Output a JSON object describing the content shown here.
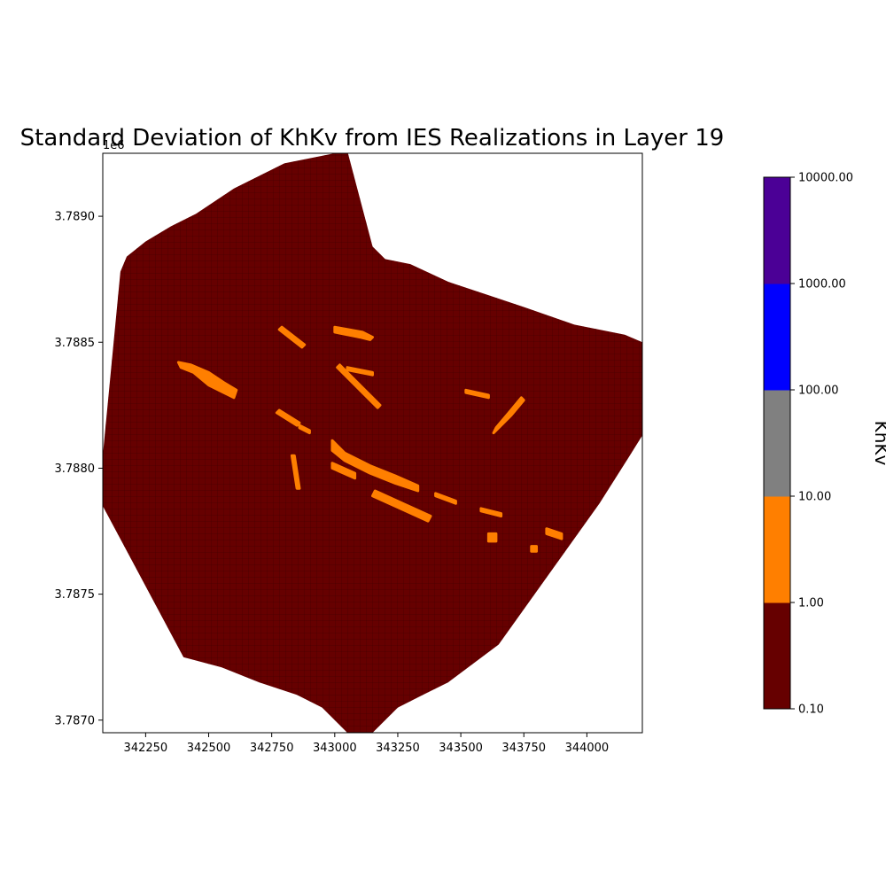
{
  "chart_data": {
    "type": "heatmap",
    "title": "Standard Deviation of KhKv from IES Realizations in Layer 19",
    "xlim": [
      342080,
      344220
    ],
    "ylim": [
      3786950,
      3789250
    ],
    "y_offset_text": "1e6",
    "x_ticks": [
      342250,
      342500,
      342750,
      343000,
      343250,
      343500,
      343750,
      344000
    ],
    "x_tick_labels": [
      "342250",
      "342500",
      "342750",
      "343000",
      "343250",
      "343500",
      "343750",
      "344000"
    ],
    "y_ticks": [
      3787000,
      3787500,
      3788000,
      3788500,
      3789000
    ],
    "y_tick_labels": [
      "3.7870",
      "3.7875",
      "3.7880",
      "3.7885",
      "3.7890"
    ],
    "domain_outline": [
      [
        342150,
        3788780
      ],
      [
        342175,
        3788840
      ],
      [
        342250,
        3788900
      ],
      [
        342350,
        3788960
      ],
      [
        342450,
        3789010
      ],
      [
        342600,
        3789110
      ],
      [
        342800,
        3789210
      ],
      [
        343000,
        3789250
      ],
      [
        343050,
        3789260
      ],
      [
        343150,
        3788880
      ],
      [
        343200,
        3788830
      ],
      [
        343300,
        3788810
      ],
      [
        343450,
        3788740
      ],
      [
        343600,
        3788690
      ],
      [
        343750,
        3788640
      ],
      [
        343950,
        3788570
      ],
      [
        344150,
        3788530
      ],
      [
        344220,
        3788500
      ],
      [
        344220,
        3788130
      ],
      [
        344170,
        3788050
      ],
      [
        344050,
        3787860
      ],
      [
        343850,
        3787580
      ],
      [
        343650,
        3787300
      ],
      [
        343450,
        3787150
      ],
      [
        343350,
        3787100
      ],
      [
        343250,
        3787050
      ],
      [
        343150,
        3786950
      ],
      [
        343050,
        3786950
      ],
      [
        342950,
        3787050
      ],
      [
        342850,
        3787100
      ],
      [
        342700,
        3787150
      ],
      [
        342550,
        3787210
      ],
      [
        342400,
        3787250
      ],
      [
        342080,
        3787850
      ],
      [
        342080,
        3788050
      ],
      [
        342150,
        3788780
      ]
    ],
    "background_value_class": "0.10-1.00",
    "zones": [
      {
        "points": [
          [
            342380,
            3788420
          ],
          [
            342430,
            3788410
          ],
          [
            342500,
            3788380
          ],
          [
            342560,
            3788340
          ],
          [
            342610,
            3788310
          ],
          [
            342600,
            3788280
          ],
          [
            342560,
            3788300
          ],
          [
            342500,
            3788330
          ],
          [
            342440,
            3788380
          ],
          [
            342390,
            3788400
          ]
        ],
        "value_class": "1.00-10.00"
      },
      {
        "points": [
          [
            342780,
            3788550
          ],
          [
            342870,
            3788480
          ],
          [
            342880,
            3788490
          ],
          [
            342790,
            3788560
          ]
        ],
        "value_class": "1.00-10.00"
      },
      {
        "points": [
          [
            343000,
            3788560
          ],
          [
            343110,
            3788540
          ],
          [
            343150,
            3788520
          ],
          [
            343140,
            3788510
          ],
          [
            343100,
            3788520
          ],
          [
            343000,
            3788540
          ]
        ],
        "value_class": "1.00-10.00"
      },
      {
        "points": [
          [
            343010,
            3788400
          ],
          [
            343170,
            3788240
          ],
          [
            343180,
            3788250
          ],
          [
            343020,
            3788410
          ]
        ],
        "value_class": "1.00-10.00"
      },
      {
        "points": [
          [
            343050,
            3788390
          ],
          [
            343150,
            3788370
          ],
          [
            343150,
            3788380
          ],
          [
            343050,
            3788400
          ]
        ],
        "value_class": "1.00-10.00"
      },
      {
        "points": [
          [
            343520,
            3788300
          ],
          [
            343610,
            3788280
          ],
          [
            343610,
            3788290
          ],
          [
            343520,
            3788310
          ]
        ],
        "value_class": "1.00-10.00"
      },
      {
        "points": [
          [
            343630,
            3788140
          ],
          [
            343700,
            3788210
          ],
          [
            343750,
            3788270
          ],
          [
            343740,
            3788280
          ],
          [
            343690,
            3788220
          ],
          [
            343640,
            3788160
          ]
        ],
        "value_class": "1.00-10.00"
      },
      {
        "points": [
          [
            342770,
            3788220
          ],
          [
            342850,
            3788170
          ],
          [
            342860,
            3788180
          ],
          [
            342780,
            3788230
          ]
        ],
        "value_class": "1.00-10.00"
      },
      {
        "points": [
          [
            342860,
            3788160
          ],
          [
            342900,
            3788140
          ],
          [
            342900,
            3788150
          ],
          [
            342860,
            3788170
          ]
        ],
        "value_class": "1.00-10.00"
      },
      {
        "points": [
          [
            342830,
            3788050
          ],
          [
            342850,
            3787920
          ],
          [
            342860,
            3787920
          ],
          [
            342840,
            3788050
          ]
        ],
        "value_class": "1.00-10.00"
      },
      {
        "points": [
          [
            342990,
            3788110
          ],
          [
            343040,
            3788060
          ],
          [
            343140,
            3788010
          ],
          [
            343240,
            3787970
          ],
          [
            343330,
            3787930
          ],
          [
            343330,
            3787910
          ],
          [
            343240,
            3787940
          ],
          [
            343140,
            3787980
          ],
          [
            343040,
            3788030
          ],
          [
            342990,
            3788070
          ]
        ],
        "value_class": "1.00-10.00"
      },
      {
        "points": [
          [
            342990,
            3788020
          ],
          [
            343080,
            3787980
          ],
          [
            343080,
            3787960
          ],
          [
            342990,
            3788000
          ]
        ],
        "value_class": "1.00-10.00"
      },
      {
        "points": [
          [
            343160,
            3787910
          ],
          [
            343270,
            3787860
          ],
          [
            343380,
            3787810
          ],
          [
            343370,
            3787790
          ],
          [
            343260,
            3787840
          ],
          [
            343150,
            3787890
          ]
        ],
        "value_class": "1.00-10.00"
      },
      {
        "points": [
          [
            343400,
            3787900
          ],
          [
            343480,
            3787870
          ],
          [
            343480,
            3787860
          ],
          [
            343400,
            3787890
          ]
        ],
        "value_class": "1.00-10.00"
      },
      {
        "points": [
          [
            343580,
            3787840
          ],
          [
            343660,
            3787820
          ],
          [
            343660,
            3787810
          ],
          [
            343580,
            3787830
          ]
        ],
        "value_class": "1.00-10.00"
      },
      {
        "points": [
          [
            343610,
            3787740
          ],
          [
            343640,
            3787740
          ],
          [
            343640,
            3787710
          ],
          [
            343610,
            3787710
          ]
        ],
        "value_class": "1.00-10.00"
      },
      {
        "points": [
          [
            343780,
            3787690
          ],
          [
            343800,
            3787690
          ],
          [
            343800,
            3787670
          ],
          [
            343780,
            3787670
          ]
        ],
        "value_class": "1.00-10.00"
      },
      {
        "points": [
          [
            343840,
            3787760
          ],
          [
            343900,
            3787740
          ],
          [
            343900,
            3787720
          ],
          [
            343840,
            3787740
          ]
        ],
        "value_class": "1.00-10.00"
      }
    ],
    "colorbar": {
      "label": "KhKv",
      "tick_labels": [
        "0.10",
        "1.00",
        "10.00",
        "100.00",
        "1000.00",
        "10000.00"
      ],
      "bins": [
        {
          "range": "0.10-1.00",
          "color": "#660000"
        },
        {
          "range": "1.00-10.00",
          "color": "#ff7f00"
        },
        {
          "range": "10.00-100.00",
          "color": "#808080"
        },
        {
          "range": "100.00-1000.00",
          "color": "#0000ff"
        },
        {
          "range": "1000.00-10000.00",
          "color": "#4b0096"
        }
      ]
    }
  }
}
